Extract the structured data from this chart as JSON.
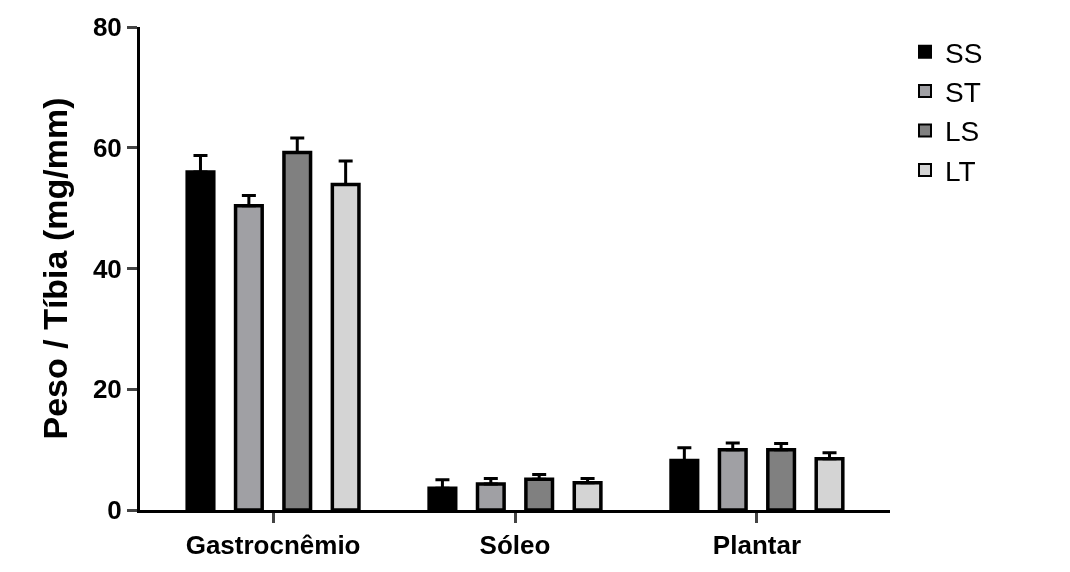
{
  "chart_data": {
    "type": "bar",
    "ylabel": "Peso / Tíbia (mg/mm)",
    "categories": [
      "Gastrocnêmio",
      "Sóleo",
      "Plantar"
    ],
    "series": [
      {
        "name": "SS",
        "color": "#000000",
        "values": [
          56.0,
          3.6,
          8.2
        ],
        "errors": [
          [
            56.0,
            58.7
          ],
          [
            3.6,
            5.0
          ],
          [
            8.2,
            10.3
          ]
        ]
      },
      {
        "name": "ST",
        "color": "#a0a0a4",
        "values": [
          50.4,
          4.3,
          10.0
        ],
        "errors": [
          [
            50.4,
            52.1
          ],
          [
            4.3,
            5.2
          ],
          [
            10.0,
            11.1
          ]
        ]
      },
      {
        "name": "LS",
        "color": "#808080",
        "values": [
          59.2,
          5.1,
          10.0
        ],
        "errors": [
          [
            59.2,
            61.6
          ],
          [
            5.1,
            5.9
          ],
          [
            10.0,
            11.0
          ]
        ]
      },
      {
        "name": "LT",
        "color": "#d4d4d4",
        "values": [
          53.9,
          4.5,
          8.5
        ],
        "errors": [
          [
            53.9,
            57.8
          ],
          [
            4.5,
            5.2
          ],
          [
            8.5,
            9.5
          ]
        ]
      }
    ],
    "ylim": [
      0,
      80
    ],
    "yticks": [
      0,
      20,
      40,
      60,
      80
    ],
    "legend": "top right"
  }
}
